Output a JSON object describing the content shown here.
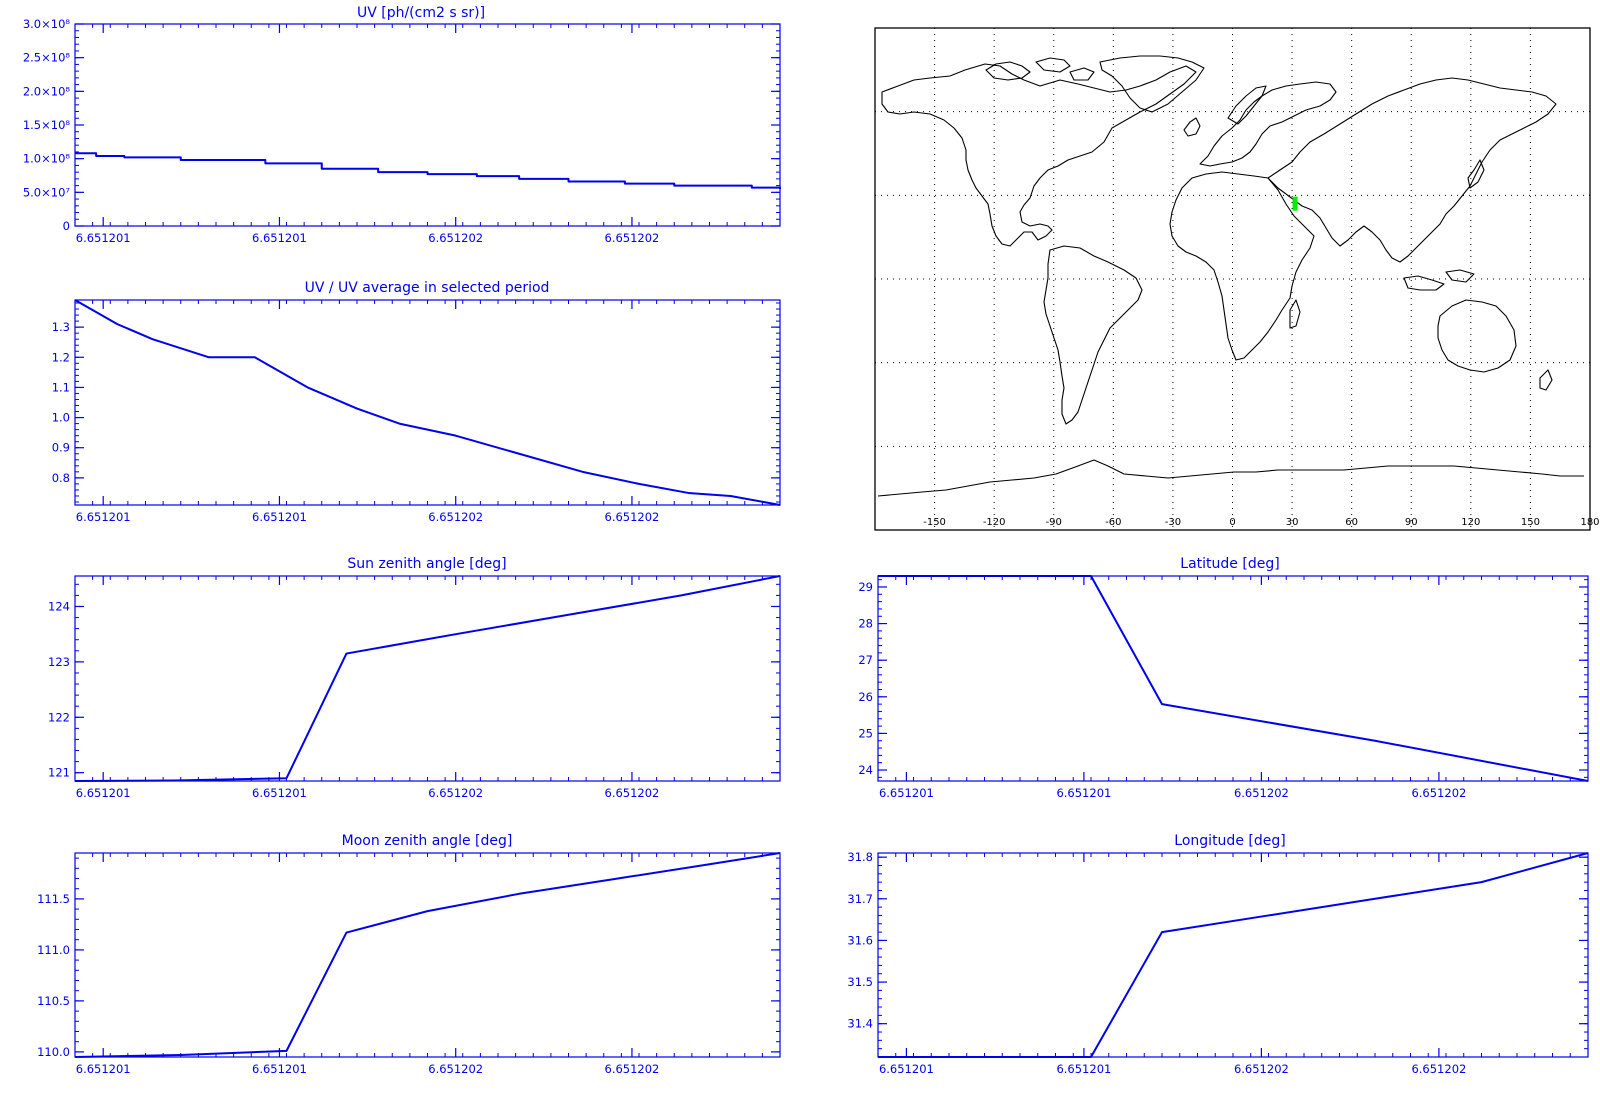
{
  "colors": {
    "plot": "#0000ee",
    "map_frame": "#000000",
    "marker": "#00ee00",
    "background": "#ffffff"
  },
  "chart_data": [
    {
      "id": "uv",
      "type": "line",
      "step": true,
      "title": "UV [ph/(cm2 s sr)]",
      "xticks": [
        "6.651201",
        "6.651201",
        "6.651202",
        "6.651202"
      ],
      "xticks_at": [
        0.04,
        0.29,
        0.54,
        0.79
      ],
      "yticks": [
        "0",
        "5.0×10⁷",
        "1.0×10⁸",
        "1.5×10⁸",
        "2.0×10⁸",
        "2.5×10⁸",
        "3.0×10⁸"
      ],
      "yticks_at": [
        0,
        50000000,
        100000000,
        150000000,
        200000000,
        250000000,
        300000000
      ],
      "ylim": [
        0,
        300000000
      ],
      "x": [
        0,
        0.03,
        0.07,
        0.15,
        0.27,
        0.35,
        0.43,
        0.5,
        0.57,
        0.63,
        0.7,
        0.78,
        0.85,
        0.96,
        1
      ],
      "y": [
        108000000,
        104000000,
        102000000,
        98000000,
        93000000,
        85000000,
        80000000,
        77000000,
        74000000,
        70000000,
        66000000,
        63000000,
        60000000,
        57000000,
        55000000
      ]
    },
    {
      "id": "uv-ratio",
      "type": "line",
      "title": "UV / UV average in selected period",
      "xticks": [
        "6.651201",
        "6.651201",
        "6.651202",
        "6.651202"
      ],
      "xticks_at": [
        0.04,
        0.29,
        0.54,
        0.79
      ],
      "yticks": [
        "0.8",
        "0.9",
        "1.0",
        "1.1",
        "1.2",
        "1.3"
      ],
      "yticks_at": [
        0.8,
        0.9,
        1.0,
        1.1,
        1.2,
        1.3
      ],
      "ylim": [
        0.71,
        1.39
      ],
      "x": [
        0,
        0.06,
        0.11,
        0.19,
        0.255,
        0.33,
        0.4,
        0.46,
        0.54,
        0.63,
        0.72,
        0.8,
        0.87,
        0.93,
        1
      ],
      "y": [
        1.39,
        1.31,
        1.26,
        1.2,
        1.2,
        1.1,
        1.03,
        0.98,
        0.94,
        0.88,
        0.82,
        0.78,
        0.75,
        0.74,
        0.71
      ]
    },
    {
      "id": "sun-zenith",
      "type": "line",
      "title": "Sun zenith angle [deg]",
      "xticks": [
        "6.651201",
        "6.651201",
        "6.651202",
        "6.651202"
      ],
      "xticks_at": [
        0.04,
        0.29,
        0.54,
        0.79
      ],
      "yticks": [
        "121",
        "122",
        "123",
        "124"
      ],
      "yticks_at": [
        121,
        122,
        123,
        124
      ],
      "ylim": [
        120.85,
        124.55
      ],
      "x": [
        0,
        0.14,
        0.3,
        0.385,
        0.54,
        0.7,
        0.86,
        1
      ],
      "y": [
        120.85,
        120.86,
        120.9,
        123.15,
        123.5,
        123.85,
        124.2,
        124.55
      ]
    },
    {
      "id": "moon-zenith",
      "type": "line",
      "title": "Moon zenith angle [deg]",
      "xticks": [
        "6.651201",
        "6.651201",
        "6.651202",
        "6.651202"
      ],
      "xticks_at": [
        0.04,
        0.29,
        0.54,
        0.79
      ],
      "yticks": [
        "110.0",
        "110.5",
        "111.0",
        "111.5"
      ],
      "yticks_at": [
        110,
        110.5,
        111,
        111.5
      ],
      "ylim": [
        109.95,
        111.95
      ],
      "x": [
        0,
        0.15,
        0.3,
        0.385,
        0.5,
        0.63,
        0.77,
        0.9,
        1
      ],
      "y": [
        109.95,
        109.97,
        110.01,
        111.17,
        111.38,
        111.55,
        111.7,
        111.84,
        111.95
      ]
    },
    {
      "id": "latitude",
      "type": "line",
      "title": "Latitude [deg]",
      "xticks": [
        "6.651201",
        "6.651201",
        "6.651202",
        "6.651202"
      ],
      "xticks_at": [
        0.04,
        0.29,
        0.54,
        0.79
      ],
      "yticks": [
        "24",
        "25",
        "26",
        "27",
        "28",
        "29"
      ],
      "yticks_at": [
        24,
        25,
        26,
        27,
        28,
        29
      ],
      "ylim": [
        23.7,
        29.3
      ],
      "x": [
        0,
        0.3,
        0.4,
        0.7,
        1
      ],
      "y": [
        29.3,
        29.3,
        25.8,
        24.8,
        23.7
      ]
    },
    {
      "id": "longitude",
      "type": "line",
      "title": "Longitude [deg]",
      "xticks": [
        "6.651201",
        "6.651201",
        "6.651202",
        "6.651202"
      ],
      "xticks_at": [
        0.04,
        0.29,
        0.54,
        0.79
      ],
      "yticks": [
        "31.4",
        "31.5",
        "31.6",
        "31.7",
        "31.8"
      ],
      "yticks_at": [
        31.4,
        31.5,
        31.6,
        31.7,
        31.8
      ],
      "ylim": [
        31.32,
        31.81
      ],
      "x": [
        0,
        0.3,
        0.4,
        0.55,
        0.7,
        0.85,
        1
      ],
      "y": [
        31.32,
        31.32,
        31.62,
        31.66,
        31.7,
        31.74,
        31.81
      ]
    }
  ],
  "map": {
    "xlabels": [
      "-150",
      "-120",
      "-90",
      "-60",
      "-30",
      "0",
      "30",
      "60",
      "90",
      "120",
      "150",
      "180"
    ],
    "lon_ticks": [
      -150,
      -120,
      -90,
      -60,
      -30,
      0,
      30,
      60,
      90,
      120,
      150,
      180
    ],
    "lat_grid": [
      60,
      30,
      0,
      -30,
      -60
    ],
    "lon_range": [
      -180,
      180
    ],
    "lat_range": [
      -90,
      90
    ],
    "marker": {
      "lon": 31.5,
      "lat": 27
    },
    "track_marker_color": "#00ee00"
  }
}
